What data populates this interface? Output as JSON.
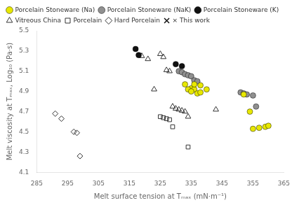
{
  "chart_data": {
    "type": "scatter",
    "xlabel": "Melt surface tension at Tₘₐₓ (mN·m⁻¹)",
    "ylabel": "Melt viscosity at Tₘₐₓ, Log₁₀ (Pa·s)",
    "xlim": [
      285,
      365
    ],
    "ylim": [
      4.1,
      5.5
    ],
    "xticks": [
      285,
      295,
      305,
      315,
      325,
      335,
      345,
      355,
      365
    ],
    "yticks": [
      4.1,
      4.3,
      4.5,
      4.7,
      4.9,
      5.1,
      5.3,
      5.5
    ],
    "grid": false,
    "legend": "upper left",
    "series": [
      {
        "name": "Porcelain Stoneware (Na)",
        "color": "#e8e800",
        "marker": "circle",
        "x": [
          333,
          335,
          336,
          337,
          338,
          336,
          338,
          340,
          334,
          335,
          352,
          354,
          355,
          357,
          359,
          360
        ],
        "values": [
          4.97,
          4.93,
          4.92,
          4.88,
          4.89,
          4.97,
          4.96,
          4.92,
          4.92,
          4.9,
          4.87,
          4.7,
          4.53,
          4.54,
          4.55,
          4.56
        ]
      },
      {
        "name": "Porcelain Stoneware (NaK)",
        "color": "#909090",
        "marker": "circle",
        "x": [
          331,
          332,
          333,
          334,
          335,
          336,
          337,
          351,
          352,
          353,
          355,
          356
        ],
        "values": [
          5.1,
          5.09,
          5.07,
          5.06,
          5.05,
          5.01,
          5.0,
          4.89,
          4.88,
          4.87,
          4.86,
          4.75
        ]
      },
      {
        "name": "Porcelain Stoneware (K)",
        "color": "#111111",
        "marker": "circle",
        "x": [
          317,
          318,
          330,
          332
        ],
        "values": [
          5.32,
          5.26,
          5.17,
          5.15
        ]
      },
      {
        "name": "Vitreous China",
        "color": "#333333",
        "marker": "open_triangle",
        "x": [
          319,
          321,
          323,
          325,
          326,
          327,
          328,
          329,
          330,
          331,
          332,
          333,
          334,
          343
        ],
        "values": [
          5.25,
          5.22,
          4.92,
          5.27,
          5.24,
          5.11,
          5.1,
          4.75,
          4.73,
          4.72,
          4.71,
          4.7,
          4.65,
          4.72
        ]
      },
      {
        "name": "Porcelain",
        "color": "#333333",
        "marker": "open_square",
        "x": [
          325,
          326,
          327,
          328,
          329,
          334
        ],
        "values": [
          4.65,
          4.64,
          4.63,
          4.62,
          4.55,
          4.35
        ]
      },
      {
        "name": "Hard Porcelain",
        "color": "#333333",
        "marker": "open_diamond",
        "x": [
          291,
          293,
          297,
          298,
          299
        ],
        "values": [
          4.68,
          4.63,
          4.5,
          4.49,
          4.26
        ]
      },
      {
        "name": "× This work",
        "color": "#111111",
        "marker": "x",
        "x": [],
        "values": []
      }
    ]
  }
}
